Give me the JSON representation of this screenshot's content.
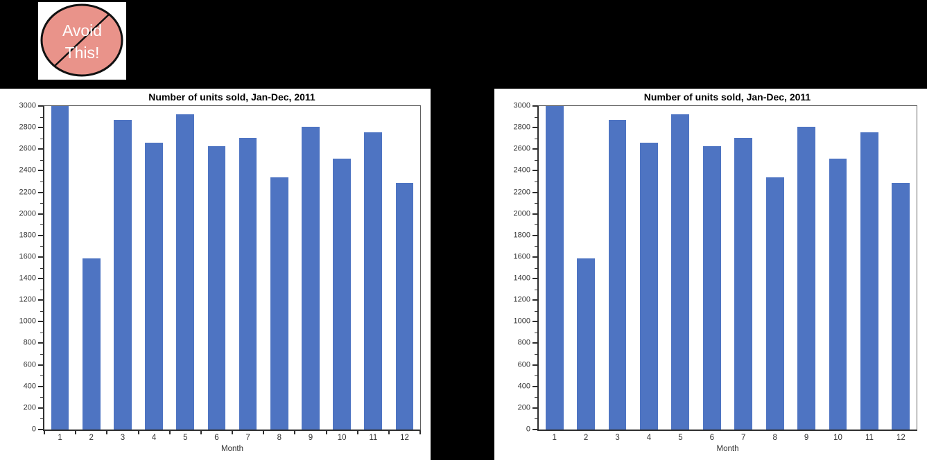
{
  "page": {
    "background": "#000000",
    "panel_background": "#ffffff"
  },
  "badge": {
    "line1": "Avoid",
    "line2": "This!",
    "circle_fill": "#e9938a",
    "circle_stroke": "#111111",
    "text_color": "#ffffff"
  },
  "colors": {
    "bar": "#4e74c2",
    "axis": "#2e2e2e",
    "frame": "#606060",
    "tick_label": "#333333"
  },
  "chart_data": [
    {
      "type": "bar",
      "panel": "left",
      "title": "Number of units sold, Jan-Dec, 2011",
      "xlabel": "Month",
      "categories": [
        "1",
        "2",
        "3",
        "4",
        "5",
        "6",
        "7",
        "8",
        "9",
        "10",
        "11",
        "12"
      ],
      "values": [
        3000,
        1585,
        2870,
        2660,
        2925,
        2625,
        2705,
        2340,
        2810,
        2510,
        2755,
        2290
      ],
      "ylim": [
        0,
        3000
      ],
      "y_major_step": 200,
      "y_minor_step": 100,
      "x_boundary_ticks": true,
      "grid": false,
      "legend": "none"
    },
    {
      "type": "bar",
      "panel": "right",
      "title": "Number of units sold, Jan-Dec, 2011",
      "xlabel": "Month",
      "categories": [
        "1",
        "2",
        "3",
        "4",
        "5",
        "6",
        "7",
        "8",
        "9",
        "10",
        "11",
        "12"
      ],
      "values": [
        3000,
        1585,
        2870,
        2660,
        2925,
        2625,
        2705,
        2340,
        2810,
        2510,
        2755,
        2290
      ],
      "ylim": [
        0,
        3000
      ],
      "y_major_step": 200,
      "y_minor_step": 100,
      "x_boundary_ticks": false,
      "grid": false,
      "legend": "none"
    }
  ]
}
